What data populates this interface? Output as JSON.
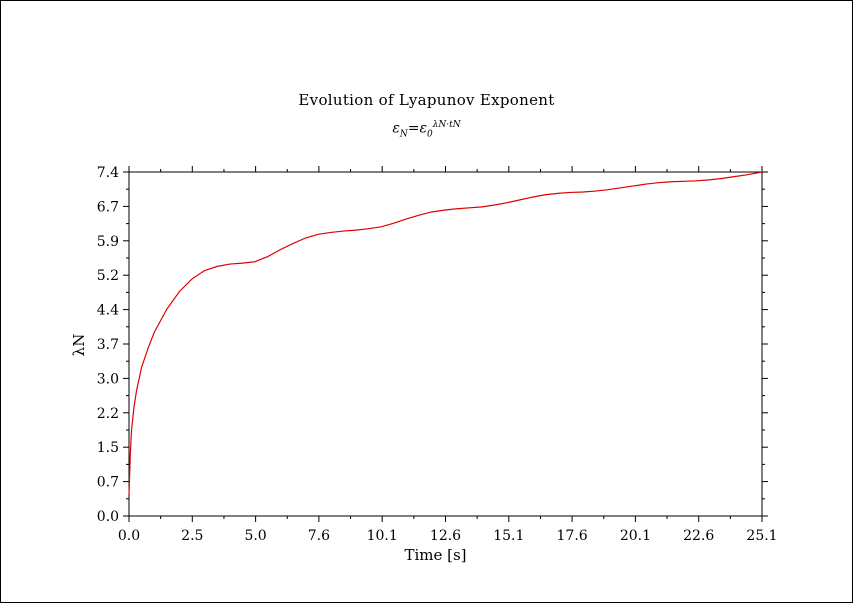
{
  "chart_data": {
    "type": "line",
    "title": "Evolution of Lyapunov Exponent",
    "subtitle": {
      "lhs_base": "ε",
      "lhs_sub": "N",
      "eq": "=",
      "rhs_base": "ε",
      "rhs_sub": "0",
      "rhs_sup": "λN·tN"
    },
    "xlabel": "Time [s]",
    "ylabel": "λN",
    "xlim": [
      0.0,
      25.1
    ],
    "ylim": [
      0.0,
      7.4
    ],
    "x_ticks": [
      "0.0",
      "2.5",
      "5.0",
      "7.6",
      "10.1",
      "12.6",
      "15.1",
      "17.6",
      "20.1",
      "22.6",
      "25.1"
    ],
    "y_ticks": [
      "0.0",
      "0.7",
      "1.5",
      "2.2",
      "3.0",
      "3.7",
      "4.4",
      "5.2",
      "5.9",
      "6.7",
      "7.4"
    ],
    "grid": false,
    "series": [
      {
        "name": "",
        "color": "#dd0000",
        "x": [
          0.0,
          0.05,
          0.1,
          0.2,
          0.3,
          0.5,
          0.75,
          1.0,
          1.5,
          2.0,
          2.5,
          3.0,
          3.5,
          4.0,
          4.5,
          5.0,
          5.5,
          6.0,
          6.5,
          7.0,
          7.5,
          8.0,
          8.5,
          9.0,
          9.5,
          10.0,
          10.5,
          11.0,
          11.5,
          12.0,
          12.5,
          13.0,
          13.5,
          14.0,
          14.5,
          15.0,
          15.5,
          16.0,
          16.5,
          17.0,
          17.5,
          18.0,
          18.5,
          19.0,
          19.5,
          20.0,
          20.5,
          21.0,
          21.5,
          22.0,
          22.5,
          23.0,
          23.5,
          24.0,
          24.5,
          25.1
        ],
        "y": [
          0.45,
          1.3,
          1.85,
          2.35,
          2.7,
          3.2,
          3.6,
          3.95,
          4.45,
          4.83,
          5.1,
          5.28,
          5.37,
          5.42,
          5.44,
          5.47,
          5.58,
          5.73,
          5.86,
          5.98,
          6.06,
          6.1,
          6.13,
          6.15,
          6.18,
          6.22,
          6.3,
          6.39,
          6.47,
          6.54,
          6.58,
          6.61,
          6.63,
          6.65,
          6.69,
          6.74,
          6.8,
          6.86,
          6.91,
          6.94,
          6.96,
          6.97,
          6.99,
          7.02,
          7.06,
          7.1,
          7.14,
          7.17,
          7.19,
          7.2,
          7.21,
          7.23,
          7.26,
          7.3,
          7.34,
          7.4
        ]
      }
    ]
  }
}
